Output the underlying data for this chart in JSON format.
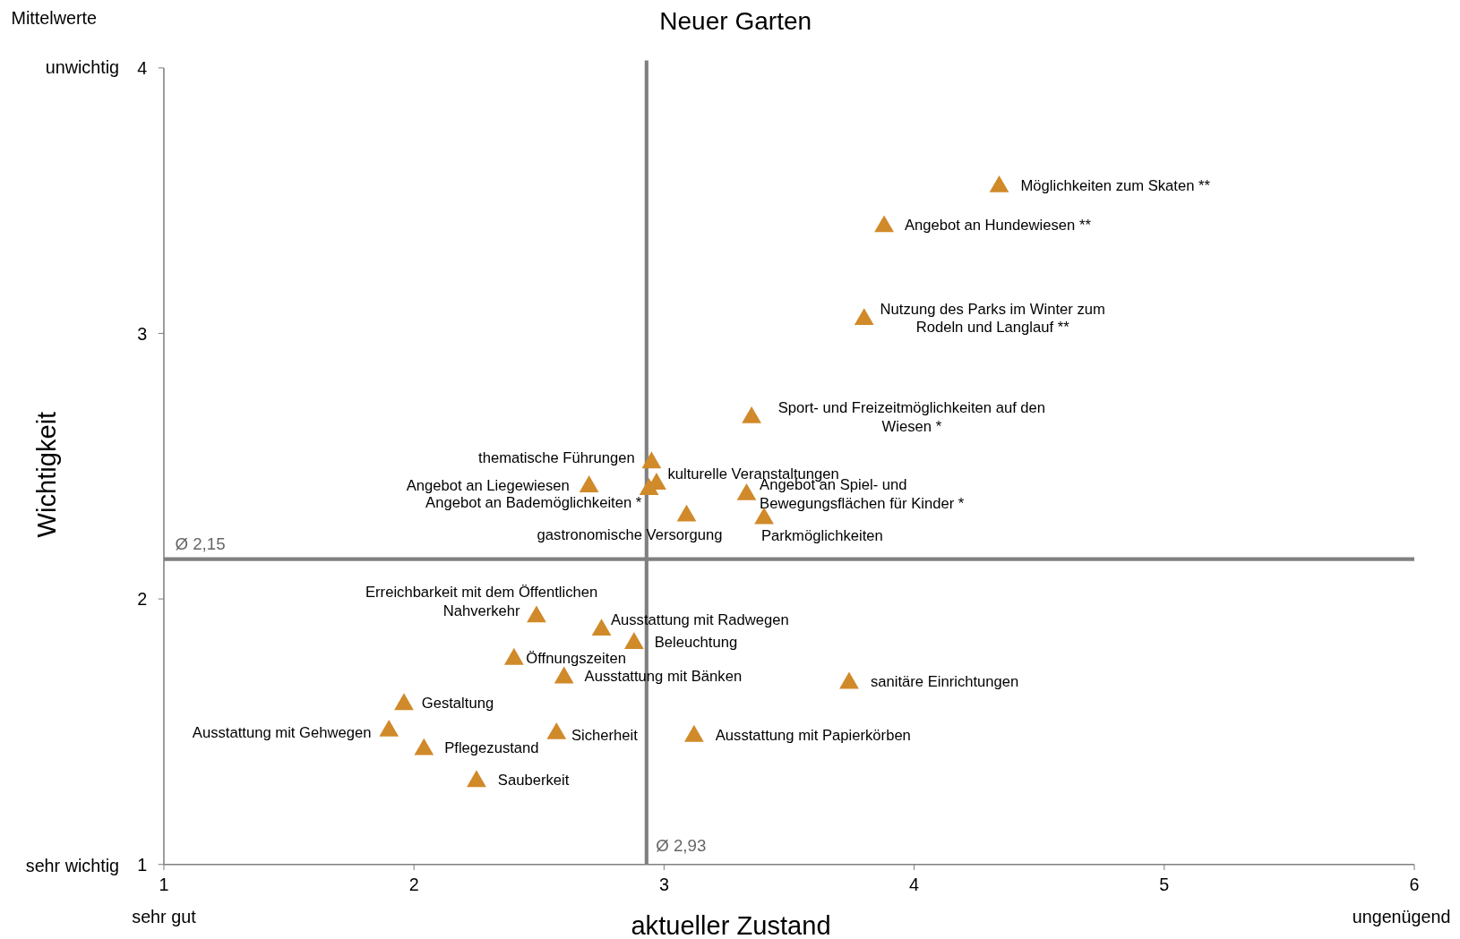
{
  "chart_data": {
    "type": "scatter",
    "title": "Neuer Garten",
    "xlabel": "aktueller Zustand",
    "ylabel": "Wichtigkeit",
    "xlim": [
      1,
      6
    ],
    "xticks": [
      1,
      2,
      3,
      4,
      5,
      6
    ],
    "ylim": [
      1,
      4
    ],
    "yticks": [
      1,
      2,
      3,
      4
    ],
    "marker": "triangle",
    "legend": false,
    "grid": false,
    "annotations": [
      "Mittelwerte",
      "unwichtig",
      "sehr wichtig",
      "sehr gut",
      "ungenügend"
    ],
    "ref_lines": [
      {
        "axis": "x",
        "value": 2.93,
        "label": "Ø 2,93",
        "color": "#808080"
      },
      {
        "axis": "y",
        "value": 2.15,
        "label": "Ø 2,15",
        "color": "#808080"
      }
    ],
    "series": [
      {
        "name": "Möglichkeiten zum Skaten **",
        "color": "#d08a2a",
        "x": [
          4.34
        ],
        "values": [
          3.56
        ]
      },
      {
        "name": "Angebot an Hundewiesen **",
        "color": "#d08a2a",
        "x": [
          3.88
        ],
        "values": [
          3.41
        ]
      },
      {
        "name": "Nutzung des Parks im Winter zum Rodeln und Langlauf **",
        "color": "#d08a2a",
        "x": [
          3.8
        ],
        "values": [
          3.06
        ]
      },
      {
        "name": "Sport- und Freizeitmöglichkeiten auf den Wiesen *",
        "color": "#d08a2a",
        "x": [
          3.35
        ],
        "values": [
          2.69
        ]
      },
      {
        "name": "thematische Führungen",
        "color": "#d08a2a",
        "x": [
          2.95
        ],
        "values": [
          2.52
        ]
      },
      {
        "name": "kulturelle Veranstaltungen",
        "color": "#d08a2a",
        "x": [
          2.97
        ],
        "values": [
          2.44
        ]
      },
      {
        "name": "Angebot an Liegewiesen",
        "color": "#d08a2a",
        "x": [
          2.7
        ],
        "values": [
          2.43
        ]
      },
      {
        "name": "Angebot an Bademöglichkeiten *",
        "color": "#d08a2a",
        "x": [
          2.94
        ],
        "values": [
          2.42
        ]
      },
      {
        "name": "gastronomische Versorgung",
        "color": "#d08a2a",
        "x": [
          3.09
        ],
        "values": [
          2.32
        ]
      },
      {
        "name": "Angebot an Spiel- und Bewegungsflächen für Kinder *",
        "color": "#d08a2a",
        "x": [
          3.33
        ],
        "values": [
          2.4
        ]
      },
      {
        "name": "Parkmöglichkeiten",
        "color": "#d08a2a",
        "x": [
          3.4
        ],
        "values": [
          2.31
        ]
      },
      {
        "name": "Erreichbarkeit mit dem Öffentlichen Nahverkehr",
        "color": "#d08a2a",
        "x": [
          2.49
        ],
        "values": [
          1.94
        ]
      },
      {
        "name": "Ausstattung mit Radwegen",
        "color": "#d08a2a",
        "x": [
          2.75
        ],
        "values": [
          1.89
        ]
      },
      {
        "name": "Beleuchtung",
        "color": "#d08a2a",
        "x": [
          2.88
        ],
        "values": [
          1.84
        ]
      },
      {
        "name": "Öffnungszeiten",
        "color": "#d08a2a",
        "x": [
          2.4
        ],
        "values": [
          1.78
        ]
      },
      {
        "name": "Ausstattung mit Bänken",
        "color": "#d08a2a",
        "x": [
          2.6
        ],
        "values": [
          1.71
        ]
      },
      {
        "name": "sanitäre Einrichtungen",
        "color": "#d08a2a",
        "x": [
          3.74
        ],
        "values": [
          1.69
        ]
      },
      {
        "name": "Gestaltung",
        "color": "#d08a2a",
        "x": [
          1.96
        ],
        "values": [
          1.61
        ]
      },
      {
        "name": "Ausstattung mit Gehwegen",
        "color": "#d08a2a",
        "x": [
          1.9
        ],
        "values": [
          1.51
        ]
      },
      {
        "name": "Pflegezustand",
        "color": "#d08a2a",
        "x": [
          2.04
        ],
        "values": [
          1.44
        ]
      },
      {
        "name": "Sicherheit",
        "color": "#d08a2a",
        "x": [
          2.57
        ],
        "values": [
          1.5
        ]
      },
      {
        "name": "Ausstattung mit Papierkörben",
        "color": "#d08a2a",
        "x": [
          3.12
        ],
        "values": [
          1.49
        ]
      },
      {
        "name": "Sauberkeit",
        "color": "#d08a2a",
        "x": [
          2.25
        ],
        "values": [
          1.32
        ]
      }
    ]
  }
}
